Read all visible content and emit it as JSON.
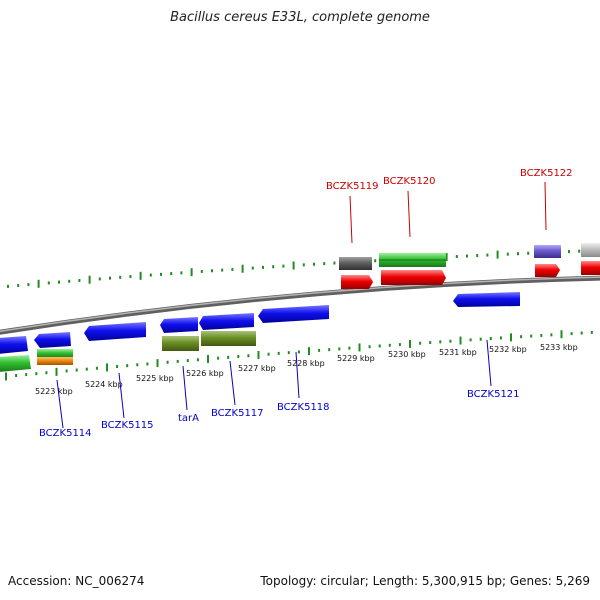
{
  "title": "Bacillus cereus E33L, complete genome",
  "footer": {
    "accession": "Accession: NC_006274",
    "summary": "Topology: circular; Length: 5,300,915 bp; Genes: 5,269"
  },
  "scale_ticks": [
    "5223 kbp",
    "5224 kbp",
    "5225 kbp",
    "5226 kbp",
    "5227 kbp",
    "5228 kbp",
    "5229 kbp",
    "5230 kbp",
    "5231 kbp",
    "5232 kbp",
    "5233 kbp"
  ],
  "genes_top": [
    "BCZK5119",
    "BCZK5120",
    "BCZK5122"
  ],
  "genes_bottom": [
    "BCZK5114",
    "BCZK5115",
    "tarA",
    "BCZK5117",
    "BCZK5118",
    "BCZK5121"
  ],
  "colors": {
    "forward_label": "#cc0000",
    "reverse_label": "#0000cc",
    "cds": "#0000ee",
    "gene_red": "#ee0000",
    "gene_green": "#33cc33",
    "olive": "#6b8e23",
    "tick": "#228b22",
    "backbone": "#808080"
  }
}
